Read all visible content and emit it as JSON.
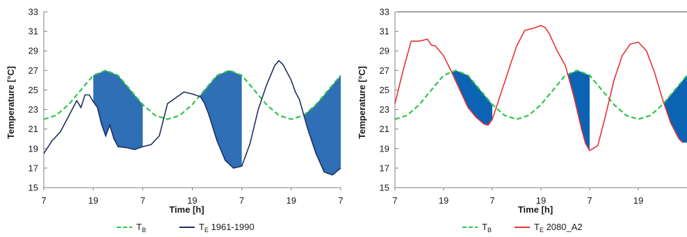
{
  "chart_data": [
    {
      "type": "line",
      "xlabel": "Time [h]",
      "ylabel": "Temperature [°C]",
      "ylim": [
        15,
        33
      ],
      "yticks": [
        "15",
        "17",
        "19",
        "21",
        "23",
        "25",
        "27",
        "29",
        "31",
        "33"
      ],
      "xlim": [
        0,
        72
      ],
      "xtick_labels": [
        "7",
        "19",
        "7",
        "19",
        "7",
        "19",
        "7"
      ],
      "grid": false,
      "legend_position": "bottom",
      "legend": {
        "tb_main": "T",
        "tb_sub": "B",
        "te_main": "T",
        "te_sub": "E",
        "te_suffix": " 1961-1990"
      },
      "colors": {
        "tb": "#2ec44a",
        "te": "#1f2f5c",
        "fill": "#2e6fb5",
        "axis": "#7f7f7f"
      },
      "series": [
        {
          "name": "TB",
          "style": "dashed",
          "x": [
            0,
            3,
            6,
            9,
            12,
            15,
            18,
            21,
            24,
            27,
            30,
            33,
            36,
            39,
            42,
            45,
            48,
            51,
            54,
            57,
            60,
            63,
            66,
            69,
            72
          ],
          "y": [
            22,
            22.4,
            23.5,
            25.0,
            26.5,
            27.0,
            26.5,
            25.0,
            23.5,
            22.4,
            22,
            22.4,
            23.5,
            25.0,
            26.5,
            27.0,
            26.5,
            25.0,
            23.5,
            22.4,
            22,
            22.4,
            23.5,
            25.0,
            26.5
          ]
        },
        {
          "name": "TE 1961-1990",
          "style": "solid",
          "x": [
            0,
            2,
            4,
            6,
            8,
            9,
            10,
            11,
            12,
            13,
            14,
            15,
            16,
            17,
            18,
            20,
            22,
            24,
            26,
            28,
            30,
            32,
            34,
            36,
            38,
            39,
            40,
            42,
            44,
            46,
            48,
            50,
            52,
            54,
            56,
            57,
            58,
            60,
            61,
            62,
            64,
            66,
            68,
            70,
            72
          ],
          "y": [
            18.5,
            19.8,
            20.7,
            22.3,
            23.9,
            23.2,
            24.5,
            24.5,
            23.8,
            23.2,
            21.5,
            20.3,
            21.4,
            20.0,
            19.2,
            19.1,
            18.9,
            19.2,
            19.4,
            20.3,
            23.6,
            24.2,
            24.8,
            24.6,
            24.3,
            23.6,
            22.5,
            19.8,
            17.8,
            17.0,
            17.2,
            19.5,
            23.0,
            25.5,
            27.5,
            28.0,
            27.6,
            26.0,
            24.8,
            24.0,
            21.0,
            18.5,
            16.6,
            16.3,
            17.0
          ]
        }
      ],
      "shaded_intervals": [
        [
          12,
          24
        ],
        [
          36,
          48
        ],
        [
          60,
          72
        ]
      ]
    },
    {
      "type": "line",
      "xlabel": "Time [h]",
      "ylabel": "Temperature [°C]",
      "ylim": [
        15,
        33
      ],
      "yticks": [
        "15",
        "17",
        "19",
        "21",
        "23",
        "25",
        "27",
        "29",
        "31",
        "33"
      ],
      "xlim": [
        0,
        72
      ],
      "xtick_labels": [
        "7",
        "19",
        "7",
        "19",
        "7",
        "19"
      ],
      "grid": false,
      "legend_position": "bottom",
      "legend": {
        "tb_main": "T",
        "tb_sub": "B",
        "te_main": "T",
        "te_sub": "E",
        "te_suffix": " 2080_A2"
      },
      "colors": {
        "tb": "#2ec44a",
        "te": "#e63232",
        "fill": "#0c63b4",
        "axis": "#7f7f7f"
      },
      "series": [
        {
          "name": "TB",
          "style": "dashed",
          "x": [
            0,
            3,
            6,
            9,
            12,
            15,
            18,
            21,
            24,
            27,
            30,
            33,
            36,
            39,
            42,
            45,
            48,
            51,
            54,
            57,
            60,
            63,
            66,
            69,
            72
          ],
          "y": [
            22,
            22.4,
            23.5,
            25.0,
            26.5,
            27.0,
            26.5,
            25.0,
            23.5,
            22.4,
            22,
            22.4,
            23.5,
            25.0,
            26.5,
            27.0,
            26.5,
            25.0,
            23.5,
            22.4,
            22,
            22.4,
            23.5,
            25.0,
            26.5
          ]
        },
        {
          "name": "TE 2080_A2",
          "style": "solid",
          "x": [
            0,
            2,
            4,
            5,
            6,
            7,
            8,
            9,
            10,
            12,
            14,
            16,
            18,
            20,
            22,
            23,
            24,
            26,
            28,
            30,
            32,
            34,
            36,
            37,
            38,
            40,
            42,
            44,
            46,
            47,
            48,
            50,
            52,
            54,
            56,
            58,
            60,
            62,
            64,
            66,
            68,
            70,
            71
          ],
          "y": [
            23.6,
            27.0,
            30.0,
            30.0,
            30.0,
            30.1,
            30.2,
            29.6,
            29.5,
            28.5,
            26.8,
            25.0,
            23.2,
            22.2,
            21.5,
            21.4,
            22.0,
            24.5,
            27.0,
            29.5,
            31.1,
            31.3,
            31.6,
            31.4,
            30.8,
            29.0,
            27.5,
            24.5,
            21.0,
            19.5,
            18.8,
            19.3,
            22.5,
            26.0,
            28.5,
            29.7,
            29.9,
            29.0,
            26.8,
            24.0,
            21.6,
            20.0,
            19.6
          ]
        }
      ],
      "shaded_intervals": [
        [
          12,
          24
        ],
        [
          36,
          48
        ],
        [
          60,
          72
        ]
      ]
    }
  ]
}
